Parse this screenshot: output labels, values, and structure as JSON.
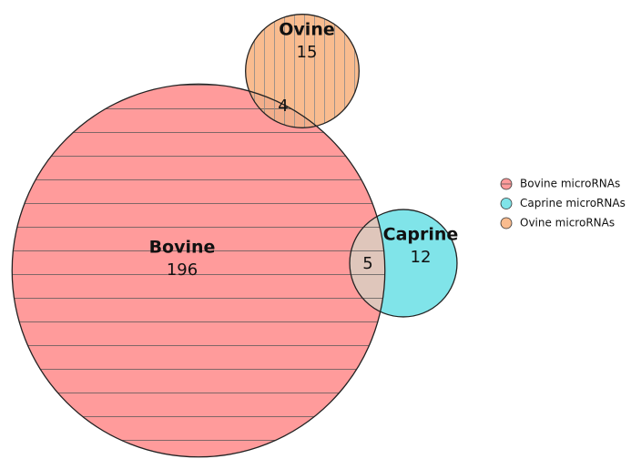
{
  "chart_data": {
    "type": "venn",
    "sets": [
      {
        "name": "Bovine",
        "value": 196,
        "color": "#ff9b9b"
      },
      {
        "name": "Caprine",
        "value": 12,
        "color": "#80e4e9"
      },
      {
        "name": "Ovine",
        "value": 15,
        "color": "#f9bc8f"
      }
    ],
    "overlaps": [
      {
        "sets": [
          "Bovine",
          "Ovine"
        ],
        "value": 4,
        "color": "#f2ae8b"
      },
      {
        "sets": [
          "Bovine",
          "Caprine"
        ],
        "value": 5,
        "color": "#dfc6bb"
      }
    ],
    "legend": [
      "Bovine microRNAs",
      "Caprine microRNAs",
      "Ovine microRNAs"
    ]
  }
}
